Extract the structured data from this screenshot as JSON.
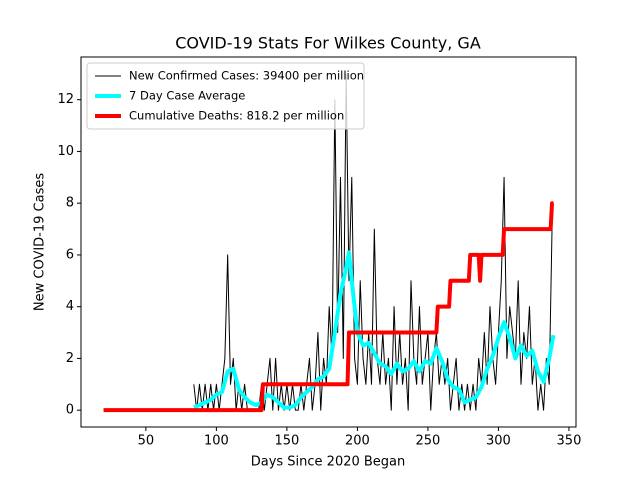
{
  "chart_data": {
    "type": "line",
    "title": "COVID-19 Stats For Wilkes County, GA",
    "x_label": "Days Since 2020 Began",
    "y_label": "New COVID-19 Cases",
    "xlim": [
      4,
      355
    ],
    "ylim": [
      -0.65,
      13.65
    ],
    "xticks": [
      50,
      100,
      150,
      200,
      250,
      300,
      350
    ],
    "yticks": [
      0,
      2,
      4,
      6,
      8,
      10,
      12
    ],
    "legend": "upper left",
    "series": [
      {
        "name": "New Confirmed Cases: 39400 per million",
        "color": "#000000",
        "linewidth": 1,
        "x": [
          84,
          86,
          88,
          90,
          92,
          94,
          96,
          98,
          100,
          102,
          104,
          106,
          108,
          110,
          112,
          114,
          116,
          118,
          120,
          122,
          124,
          126,
          128,
          130,
          132,
          134,
          136,
          138,
          140,
          142,
          144,
          146,
          148,
          150,
          152,
          154,
          156,
          158,
          160,
          162,
          164,
          166,
          168,
          170,
          172,
          174,
          176,
          178,
          180,
          182,
          184,
          186,
          188,
          190,
          192,
          194,
          196,
          198,
          200,
          202,
          204,
          206,
          208,
          210,
          212,
          214,
          216,
          218,
          220,
          222,
          224,
          226,
          228,
          230,
          232,
          234,
          236,
          238,
          240,
          242,
          244,
          246,
          248,
          250,
          252,
          254,
          256,
          258,
          260,
          262,
          264,
          266,
          268,
          270,
          272,
          274,
          276,
          278,
          280,
          282,
          284,
          286,
          288,
          290,
          292,
          294,
          296,
          298,
          300,
          302,
          304,
          306,
          308,
          310,
          312,
          314,
          316,
          318,
          320,
          322,
          324,
          326,
          328,
          330,
          332,
          334,
          336,
          338
        ],
        "values": [
          1,
          0,
          1,
          0,
          1,
          0,
          1,
          0,
          1,
          0,
          1,
          2,
          6,
          1,
          2,
          0,
          1,
          0,
          1,
          0,
          0,
          0,
          0,
          0,
          1,
          0,
          1,
          2,
          0,
          2,
          0,
          1,
          0,
          1,
          0,
          1,
          0,
          0,
          1,
          0,
          1,
          2,
          0,
          1,
          3,
          0,
          2,
          1,
          4,
          2,
          12,
          3,
          9,
          2,
          13,
          5,
          9,
          2,
          1,
          5,
          2,
          1,
          3,
          1,
          7,
          2,
          1,
          3,
          1,
          2,
          0,
          4,
          1,
          3,
          1,
          2,
          0,
          5,
          2,
          1,
          4,
          1,
          2,
          3,
          0,
          2,
          3,
          1,
          2,
          1,
          2,
          0,
          1,
          2,
          0,
          1,
          0,
          1,
          0,
          1,
          0,
          2,
          1,
          3,
          1,
          4,
          2,
          1,
          3,
          5,
          9,
          2,
          4,
          3,
          2,
          5,
          1,
          3,
          2,
          4,
          1,
          2,
          0,
          1,
          0,
          2,
          1,
          7
        ]
      },
      {
        "name": "7 Day Case Average",
        "color": "#00ffff",
        "linewidth": 4,
        "x": [
          84,
          88,
          92,
          96,
          100,
          104,
          108,
          112,
          116,
          120,
          124,
          128,
          132,
          136,
          140,
          144,
          148,
          152,
          156,
          160,
          164,
          168,
          172,
          176,
          180,
          184,
          188,
          192,
          194,
          196,
          200,
          204,
          208,
          212,
          216,
          220,
          224,
          228,
          232,
          236,
          240,
          244,
          248,
          252,
          256,
          260,
          264,
          268,
          272,
          276,
          280,
          284,
          288,
          292,
          296,
          300,
          304,
          308,
          312,
          316,
          320,
          324,
          328,
          332,
          336,
          339
        ],
        "values": [
          0.1,
          0.2,
          0.3,
          0.4,
          0.6,
          0.7,
          1.5,
          1.6,
          0.8,
          0.5,
          0.3,
          0.2,
          0.3,
          0.6,
          0.5,
          0.3,
          0.1,
          0.1,
          0.2,
          0.5,
          0.7,
          0.9,
          1.2,
          1.3,
          1.6,
          3.0,
          4.5,
          5.5,
          6.1,
          5.0,
          3.0,
          2.5,
          2.6,
          2.2,
          1.8,
          1.7,
          1.4,
          1.8,
          1.5,
          1.6,
          1.9,
          1.5,
          1.9,
          1.8,
          2.4,
          1.9,
          1.2,
          0.9,
          0.8,
          0.3,
          0.4,
          0.5,
          0.9,
          1.6,
          2.1,
          2.8,
          3.4,
          2.8,
          2.0,
          2.5,
          2.1,
          2.3,
          1.5,
          1.1,
          2.0,
          2.9
        ]
      },
      {
        "name": "Cumulative Deaths: 818.2 per million",
        "color": "#ff0000",
        "linewidth": 4,
        "x": [
          20,
          132,
          133,
          193,
          194,
          256,
          257,
          265,
          266,
          279,
          280,
          286,
          287,
          288,
          303,
          304,
          337,
          338,
          339
        ],
        "values": [
          0,
          0,
          1,
          1,
          3,
          3,
          4,
          4,
          5,
          5,
          6,
          6,
          5,
          6,
          6,
          7,
          7,
          8,
          8
        ]
      }
    ]
  }
}
